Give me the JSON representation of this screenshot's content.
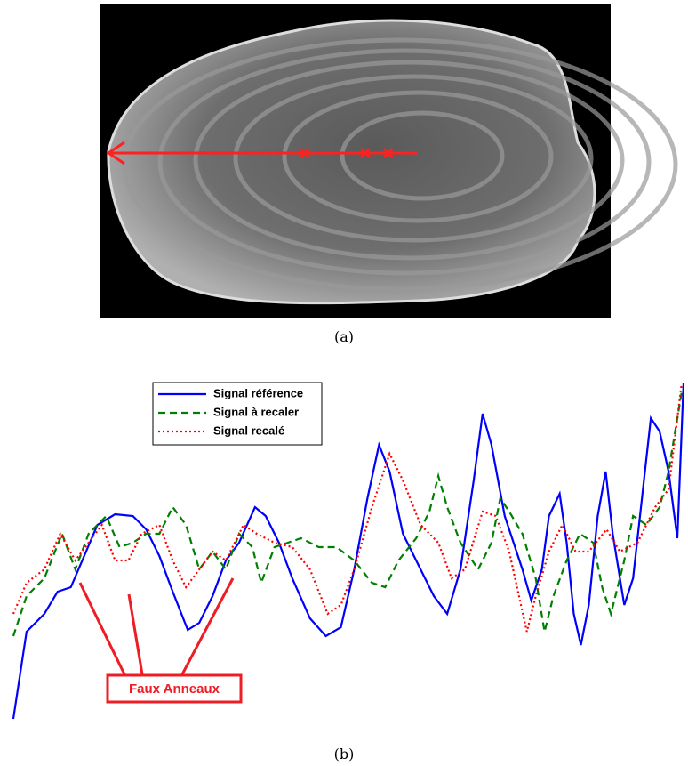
{
  "captions": [
    "(a)",
    "(b)"
  ],
  "chart_data": {
    "type": "line",
    "xlim": [
      0,
      760
    ],
    "ylim": [
      0,
      385
    ],
    "legend": "upper left",
    "annotation": "Faux Anneaux",
    "series": [
      {
        "name": "Signal référence",
        "color": "#0000ff",
        "style": "solid",
        "x": [
          0,
          15,
          35,
          50,
          65,
          80,
          95,
          115,
          135,
          150,
          165,
          180,
          197,
          210,
          225,
          240,
          255,
          273,
          285,
          300,
          315,
          335,
          353,
          370,
          385,
          400,
          413,
          425,
          440,
          455,
          475,
          490,
          505,
          520,
          530,
          540,
          555,
          575,
          585,
          597,
          605,
          617,
          625,
          633,
          641,
          650,
          660,
          669,
          677,
          690,
          700,
          710,
          720,
          730,
          740,
          750,
          757
        ],
        "values": [
          2,
          100,
          120,
          145,
          150,
          185,
          220,
          232,
          230,
          215,
          185,
          145,
          102,
          110,
          140,
          180,
          200,
          240,
          230,
          200,
          160,
          115,
          95,
          105,
          170,
          250,
          310,
          280,
          210,
          180,
          140,
          120,
          170,
          270,
          345,
          310,
          230,
          170,
          135,
          170,
          230,
          255,
          200,
          120,
          85,
          130,
          230,
          280,
          210,
          130,
          160,
          250,
          340,
          325,
          280,
          205,
          380
        ]
      },
      {
        "name": "Signal à recaler",
        "color": "#008000",
        "style": "dashed",
        "x": [
          0,
          15,
          35,
          55,
          70,
          85,
          105,
          120,
          135,
          150,
          165,
          180,
          195,
          210,
          225,
          240,
          255,
          270,
          280,
          295,
          310,
          325,
          345,
          365,
          385,
          405,
          420,
          435,
          455,
          470,
          480,
          490,
          505,
          525,
          540,
          550,
          560,
          575,
          590,
          600,
          610,
          625,
          640,
          655,
          665,
          675,
          690,
          700,
          715,
          730,
          740,
          755
        ],
        "values": [
          95,
          140,
          160,
          210,
          170,
          210,
          230,
          195,
          200,
          210,
          210,
          240,
          220,
          170,
          190,
          170,
          210,
          195,
          155,
          195,
          200,
          205,
          195,
          195,
          180,
          155,
          150,
          180,
          205,
          235,
          275,
          240,
          200,
          170,
          200,
          250,
          235,
          210,
          160,
          100,
          140,
          180,
          210,
          200,
          150,
          120,
          180,
          230,
          220,
          240,
          280,
          370
        ]
      },
      {
        "name": "Signal recalé",
        "color": "#ff0000",
        "style": "dotted",
        "x": [
          0,
          15,
          35,
          53,
          70,
          85,
          100,
          115,
          130,
          145,
          165,
          180,
          195,
          210,
          225,
          240,
          260,
          275,
          295,
          315,
          335,
          355,
          370,
          385,
          405,
          425,
          440,
          460,
          480,
          495,
          510,
          530,
          545,
          560,
          580,
          590,
          605,
          620,
          635,
          650,
          670,
          685,
          705,
          725,
          740,
          755
        ],
        "values": [
          120,
          155,
          170,
          210,
          180,
          200,
          220,
          180,
          180,
          210,
          220,
          180,
          150,
          170,
          190,
          180,
          220,
          210,
          200,
          195,
          170,
          120,
          130,
          170,
          240,
          300,
          270,
          220,
          200,
          160,
          170,
          235,
          230,
          190,
          100,
          140,
          190,
          220,
          190,
          190,
          215,
          190,
          200,
          240,
          260,
          380
        ]
      }
    ]
  }
}
